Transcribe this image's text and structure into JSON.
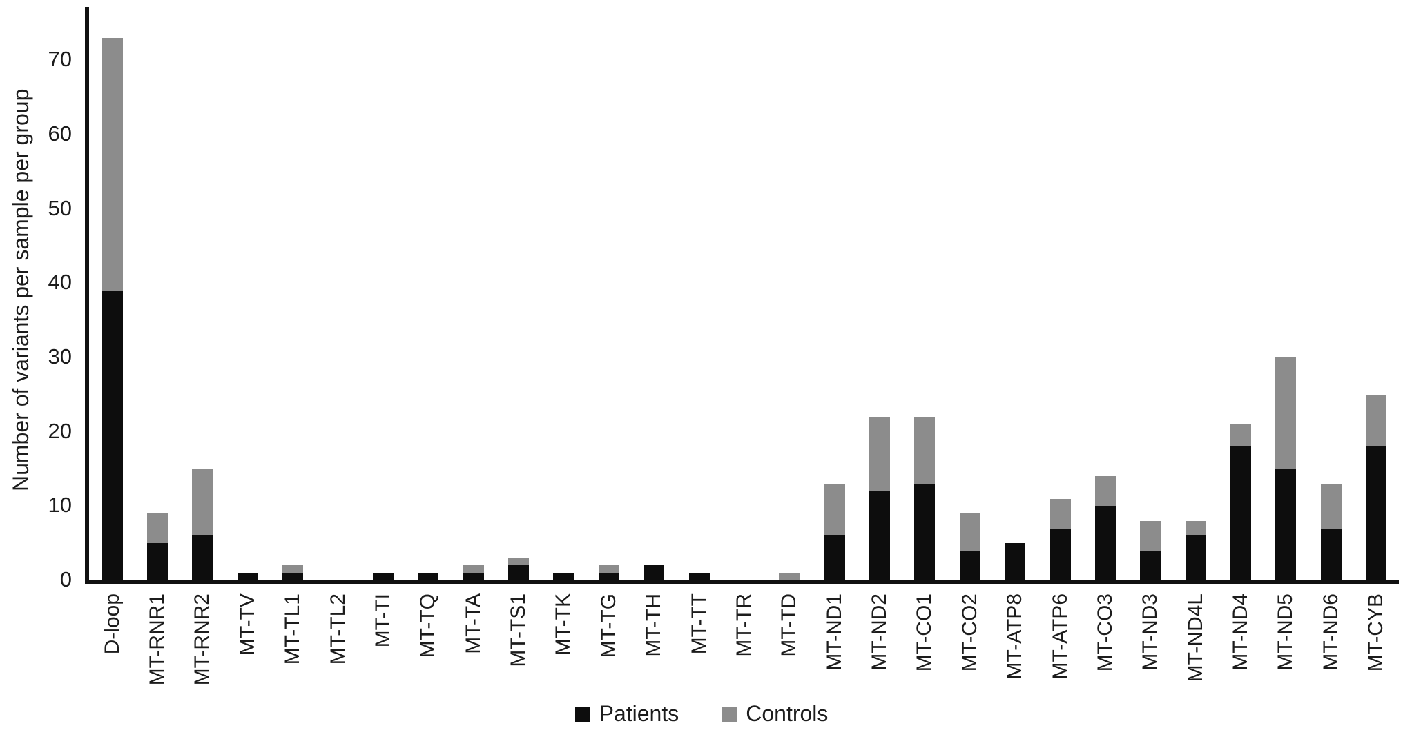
{
  "figure": {
    "background": "#ffffff",
    "axis_color": "#111111",
    "text_color": "#1c1c1c"
  },
  "chart_data": {
    "type": "bar",
    "stacked": true,
    "title": "",
    "ylabel": "Number of variants per sample per group",
    "xlabel": "",
    "yticks": [
      0,
      10,
      20,
      30,
      40,
      50,
      60,
      70
    ],
    "ylim": [
      0,
      78
    ],
    "grid": false,
    "legend_position": "bottom",
    "categories": [
      "D-loop",
      "MT-RNR1",
      "MT-RNR2",
      "MT-TV",
      "MT-TL1",
      "MT-TL2",
      "MT-TI",
      "MT-TQ",
      "MT-TA",
      "MT-TS1",
      "MT-TK",
      "MT-TG",
      "MT-TH",
      "MT-TT",
      "MT-TR",
      "MT-TD",
      "MT-ND1",
      "MT-ND2",
      "MT-CO1",
      "MT-CO2",
      "MT-ATP8",
      "MT-ATP6",
      "MT-CO3",
      "MT-ND3",
      "MT-ND4L",
      "MT-ND4",
      "MT-ND5",
      "MT-ND6",
      "MT-CYB"
    ],
    "series": [
      {
        "name": "Patients",
        "color": "#0d0d0d",
        "values": [
          39,
          5,
          6,
          1,
          1,
          0,
          1,
          1,
          1,
          2,
          1,
          1,
          2,
          1,
          0,
          0,
          6,
          12,
          13,
          4,
          5,
          7,
          10,
          4,
          6,
          18,
          15,
          7,
          18
        ]
      },
      {
        "name": "Controls",
        "color": "#8c8c8c",
        "values": [
          34,
          4,
          9,
          0,
          1,
          0,
          0,
          0,
          1,
          1,
          0,
          1,
          0,
          0,
          0,
          1,
          7,
          10,
          9,
          5,
          0,
          4,
          4,
          4,
          2,
          3,
          15,
          6,
          7
        ]
      }
    ]
  }
}
